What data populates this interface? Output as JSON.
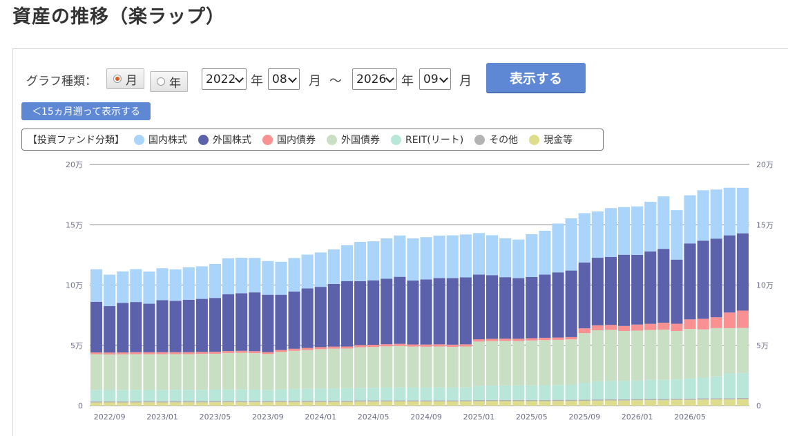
{
  "page": {
    "title": "資産の推移（楽ラップ）"
  },
  "controls": {
    "graph_type_label": "グラフ種類：",
    "month_option": "月",
    "year_option": "年",
    "month_selected": true,
    "from_year": "2022",
    "from_month": "08",
    "to_year": "2026",
    "to_month": "09",
    "year_unit": "年",
    "month_unit": "月",
    "tilde": "～",
    "show_button": "表示する",
    "back_button": "＜15ヵ月遡って表示する"
  },
  "legend": {
    "title": "【投資ファンド分類】",
    "items": [
      {
        "label": "国内株式",
        "color": "#aad4fa"
      },
      {
        "label": "外国株式",
        "color": "#5b62ab"
      },
      {
        "label": "国内債券",
        "color": "#f99091"
      },
      {
        "label": "外国債券",
        "color": "#c9dfc4"
      },
      {
        "label": "REIT(リート)",
        "color": "#b8e7da"
      },
      {
        "label": "その他",
        "color": "#b3b3b3"
      },
      {
        "label": "現金等",
        "color": "#dedd8e"
      }
    ]
  },
  "chart_data": {
    "type": "bar",
    "stacked": true,
    "categories": [
      "2022/08",
      "2022/09",
      "2022/10",
      "2022/11",
      "2022/12",
      "2023/01",
      "2023/02",
      "2023/03",
      "2023/04",
      "2023/05",
      "2023/06",
      "2023/07",
      "2023/08",
      "2023/09",
      "2023/10",
      "2023/11",
      "2023/12",
      "2024/01",
      "2024/02",
      "2024/03",
      "2024/04",
      "2024/05",
      "2024/06",
      "2024/07",
      "2024/08",
      "2024/09",
      "2024/10",
      "2024/11",
      "2024/12",
      "2025/01",
      "2025/02",
      "2025/03",
      "2025/04",
      "2025/05",
      "2025/06",
      "2025/07",
      "2025/08",
      "2025/09",
      "2025/10",
      "2025/11",
      "2025/12",
      "2026/01",
      "2026/02",
      "2026/03",
      "2026/04",
      "2026/05",
      "2026/06",
      "2026/07",
      "2026/08",
      "2026/09"
    ],
    "x_tick_labels": [
      "2022/09",
      "2023/01",
      "2023/05",
      "2023/09",
      "2024/01",
      "2024/05",
      "2024/09",
      "2025/01",
      "2025/05",
      "2025/09",
      "2026/01",
      "2026/05"
    ],
    "y_ticks": [
      0,
      50000,
      100000,
      150000,
      200000
    ],
    "y_tick_labels": [
      "0",
      "5万",
      "10万",
      "15万",
      "20万"
    ],
    "ylim": [
      0,
      200000
    ],
    "grid": true,
    "series": [
      {
        "name": "現金等",
        "color": "#dedd8e",
        "values": [
          2500,
          2600,
          2500,
          2600,
          2700,
          2600,
          2700,
          2700,
          2700,
          2800,
          2800,
          2800,
          2800,
          2800,
          3000,
          3000,
          3000,
          3000,
          3100,
          3100,
          3300,
          3300,
          3400,
          3400,
          3400,
          3400,
          3400,
          3400,
          3500,
          3600,
          3700,
          3700,
          3700,
          3700,
          3700,
          3800,
          3800,
          3900,
          4100,
          4300,
          4200,
          4400,
          4500,
          4400,
          4800,
          4800,
          5000,
          5100,
          5100,
          5300
        ]
      },
      {
        "name": "その他",
        "color": "#b3b3b3",
        "values": [
          1000,
          1000,
          1000,
          1000,
          1000,
          1000,
          1000,
          1000,
          1000,
          1000,
          1000,
          1000,
          1000,
          1000,
          1000,
          1000,
          1000,
          1000,
          1000,
          1000,
          1000,
          1000,
          1000,
          1000,
          1000,
          1000,
          1000,
          1000,
          1000,
          1000,
          1000,
          1000,
          1000,
          1000,
          1000,
          1000,
          1000,
          1000,
          1000,
          1000,
          1000,
          1000,
          1000,
          1000,
          1000,
          1000,
          1000,
          1000,
          1000,
          1000
        ]
      },
      {
        "name": "REIT(リート)",
        "color": "#b8e7da",
        "values": [
          9500,
          9300,
          9500,
          9500,
          9200,
          9400,
          9400,
          9400,
          9400,
          9400,
          9500,
          9500,
          9400,
          9200,
          9500,
          9800,
          9900,
          10100,
          10200,
          10300,
          10400,
          10500,
          10500,
          10600,
          10500,
          10500,
          10600,
          10500,
          10600,
          11800,
          11900,
          12000,
          12000,
          12100,
          12200,
          12300,
          12400,
          14000,
          15000,
          15100,
          15200,
          15400,
          15800,
          16000,
          15900,
          16600,
          17200,
          18100,
          20800,
          20700
        ]
      },
      {
        "name": "外国債券",
        "color": "#c9dfc4",
        "values": [
          29600,
          29500,
          29500,
          29600,
          29700,
          29700,
          29600,
          29600,
          29800,
          29800,
          30300,
          30500,
          30300,
          29800,
          31000,
          31600,
          32200,
          32700,
          32900,
          32900,
          33700,
          33800,
          34200,
          34400,
          34000,
          33900,
          34000,
          33800,
          33900,
          36700,
          36900,
          37000,
          36900,
          37200,
          37400,
          37400,
          37700,
          41200,
          42400,
          42400,
          41500,
          41400,
          41400,
          41600,
          40200,
          41100,
          40000,
          40100,
          37300,
          37400
        ]
      },
      {
        "name": "国内債券",
        "color": "#f99091",
        "values": [
          1500,
          1600,
          1600,
          1600,
          1600,
          1600,
          1600,
          1600,
          1600,
          1600,
          1600,
          1600,
          1600,
          1600,
          1600,
          1700,
          1700,
          1700,
          1700,
          1700,
          1800,
          1800,
          1800,
          1800,
          1800,
          1800,
          1800,
          1800,
          1800,
          1900,
          1900,
          1900,
          1900,
          1900,
          1900,
          1900,
          1900,
          4000,
          4100,
          4100,
          4100,
          5000,
          5100,
          5700,
          6000,
          8000,
          8800,
          9000,
          13000,
          14400
        ]
      },
      {
        "name": "外国株式",
        "color": "#5b62ab",
        "values": [
          42000,
          38500,
          41000,
          41600,
          40300,
          43100,
          42600,
          43400,
          44000,
          44700,
          47200,
          47800,
          48800,
          47500,
          45800,
          47500,
          49400,
          50000,
          52000,
          54300,
          53000,
          53500,
          54400,
          55600,
          53000,
          54000,
          55000,
          55200,
          55500,
          53600,
          52800,
          50900,
          50200,
          50700,
          52400,
          54100,
          55200,
          54600,
          56000,
          56400,
          59100,
          57800,
          60000,
          61300,
          53200,
          63000,
          64800,
          65100,
          64000,
          64100
        ]
      },
      {
        "name": "国内株式",
        "color": "#aad4fa",
        "values": [
          27000,
          26100,
          26200,
          27300,
          26700,
          26500,
          26100,
          27000,
          27000,
          28200,
          29800,
          29400,
          28600,
          28000,
          27400,
          27800,
          28000,
          28500,
          28700,
          29700,
          32600,
          32400,
          33400,
          34300,
          35000,
          35100,
          35200,
          35500,
          35600,
          34500,
          33100,
          32300,
          32000,
          35600,
          36400,
          40500,
          43300,
          40900,
          38400,
          40500,
          39500,
          40200,
          41200,
          43500,
          41000,
          39900,
          41800,
          40800,
          39500,
          37700
        ]
      }
    ]
  }
}
